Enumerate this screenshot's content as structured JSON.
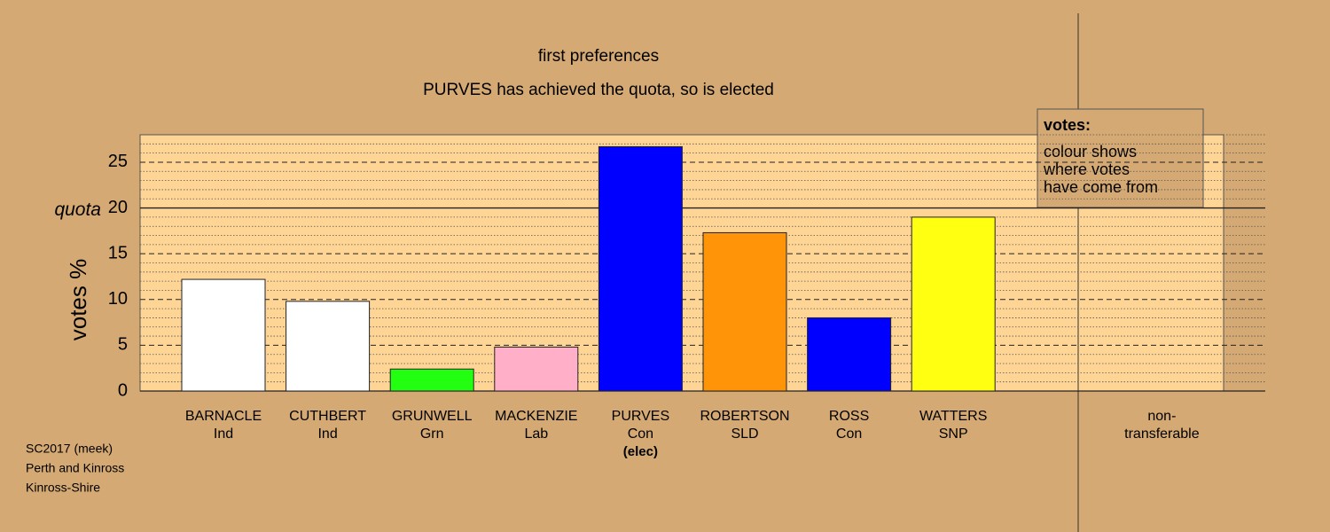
{
  "chart_data": {
    "type": "bar",
    "title": "first preferences",
    "subtitle": "PURVES has achieved the quota, so is elected",
    "y_label": "votes %",
    "categories": [
      [
        "BARNACLE",
        "Ind"
      ],
      [
        "CUTHBERT",
        "Ind"
      ],
      [
        "GRUNWELL",
        "Grn"
      ],
      [
        "MACKENZIE",
        "Lab"
      ],
      [
        "PURVES",
        "Con",
        "(elec)"
      ],
      [
        "ROBERTSON",
        "SLD"
      ],
      [
        "ROSS",
        "Con"
      ],
      [
        "WATTERS",
        "SNP"
      ],
      [
        "non-",
        "transferable"
      ]
    ],
    "values": [
      12.2,
      9.8,
      2.4,
      4.8,
      26.7,
      17.3,
      8.0,
      19.0,
      0
    ],
    "colors": [
      "#ffffff",
      "#ffffff",
      "#22ff11",
      "#ffb0c8",
      "#0000ff",
      "#ff9408",
      "#0000ff",
      "#ffff11",
      "#ffffff"
    ],
    "ylim": [
      0,
      28
    ],
    "yticks": [
      0,
      5,
      10,
      15,
      20,
      25
    ],
    "minor_yticks": [
      1,
      2,
      3,
      4,
      6,
      7,
      8,
      9,
      11,
      12,
      13,
      14,
      16,
      17,
      18,
      19,
      21,
      22,
      23,
      24,
      26,
      27,
      28
    ],
    "quota": {
      "value": 20,
      "label": "quota"
    },
    "legend": {
      "title": "votes:",
      "lines": [
        "colour shows",
        "where votes",
        "have come from"
      ]
    },
    "footer": [
      "SC2017 (meek)",
      "Perth and Kinross",
      "Kinross-Shire"
    ]
  }
}
